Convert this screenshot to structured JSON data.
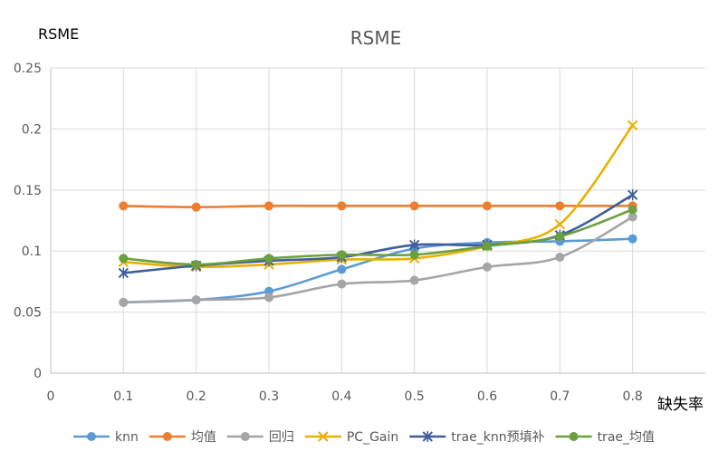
{
  "chart_data": {
    "type": "line",
    "title": "RSME",
    "ylabel": "RSME",
    "xlabel": "缺失率",
    "x": [
      0.1,
      0.2,
      0.3,
      0.4,
      0.5,
      0.6,
      0.7,
      0.8
    ],
    "xlim": [
      0,
      0.9
    ],
    "ylim": [
      0,
      0.25
    ],
    "xticks": [
      "0",
      "0.1",
      "0.2",
      "0.3",
      "0.4",
      "0.5",
      "0.6",
      "0.7",
      "0.8"
    ],
    "yticks": [
      "0",
      "0.05",
      "0.1",
      "0.15",
      "0.2",
      "0.25"
    ],
    "grid": true,
    "legend_position": "bottom",
    "series": [
      {
        "name": "knn",
        "color": "#5B9BD5",
        "marker": "circle",
        "values": [
          0.058,
          0.06,
          0.067,
          0.085,
          0.102,
          0.107,
          0.108,
          0.11
        ]
      },
      {
        "name": "均值",
        "color": "#ED7D31",
        "marker": "circle",
        "values": [
          0.137,
          0.136,
          0.137,
          0.137,
          0.137,
          0.137,
          0.137,
          0.137
        ]
      },
      {
        "name": "回归",
        "color": "#A5A5A5",
        "marker": "circle",
        "values": [
          0.058,
          0.06,
          0.062,
          0.073,
          0.076,
          0.087,
          0.095,
          0.128
        ]
      },
      {
        "name": "PC_Gain",
        "color": "#E8B000",
        "marker": "x",
        "values": [
          0.091,
          0.087,
          0.089,
          0.093,
          0.094,
          0.104,
          0.122,
          0.203
        ]
      },
      {
        "name": "trae_knn预填补",
        "color": "#3F5F9C",
        "marker": "star",
        "values": [
          0.082,
          0.088,
          0.092,
          0.095,
          0.105,
          0.105,
          0.113,
          0.146
        ]
      },
      {
        "name": "trae_均值",
        "color": "#6AA03E",
        "marker": "circle",
        "values": [
          0.094,
          0.089,
          0.094,
          0.097,
          0.097,
          0.104,
          0.112,
          0.134
        ]
      }
    ]
  }
}
